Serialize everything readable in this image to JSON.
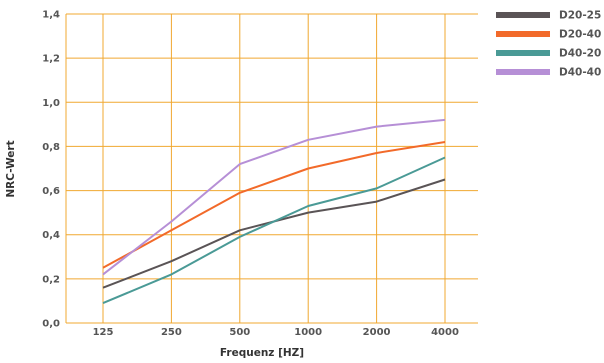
{
  "chart_data": {
    "type": "line",
    "xlabel": "Frequenz [HZ]",
    "ylabel": "NRC-Wert",
    "categories": [
      "125",
      "250",
      "500",
      "1000",
      "2000",
      "4000"
    ],
    "ylim": [
      0,
      1.4
    ],
    "yticks": [
      "0,0",
      "0,2",
      "0,4",
      "0,6",
      "0,8",
      "1,0",
      "1,2",
      "1,4"
    ],
    "grid": true,
    "grid_color": "#f0a830",
    "legend_position": "top-right",
    "series": [
      {
        "name": "D20-25",
        "color": "#5a5456",
        "values": [
          0.16,
          0.28,
          0.42,
          0.5,
          0.55,
          0.65
        ]
      },
      {
        "name": "D20-40",
        "color": "#f26a2a",
        "values": [
          0.25,
          0.42,
          0.59,
          0.7,
          0.77,
          0.82
        ]
      },
      {
        "name": "D40-20",
        "color": "#4a9a96",
        "values": [
          0.09,
          0.22,
          0.39,
          0.53,
          0.61,
          0.75
        ]
      },
      {
        "name": "D40-40",
        "color": "#b68fd6",
        "values": [
          0.22,
          0.46,
          0.72,
          0.83,
          0.89,
          0.92
        ]
      }
    ]
  }
}
